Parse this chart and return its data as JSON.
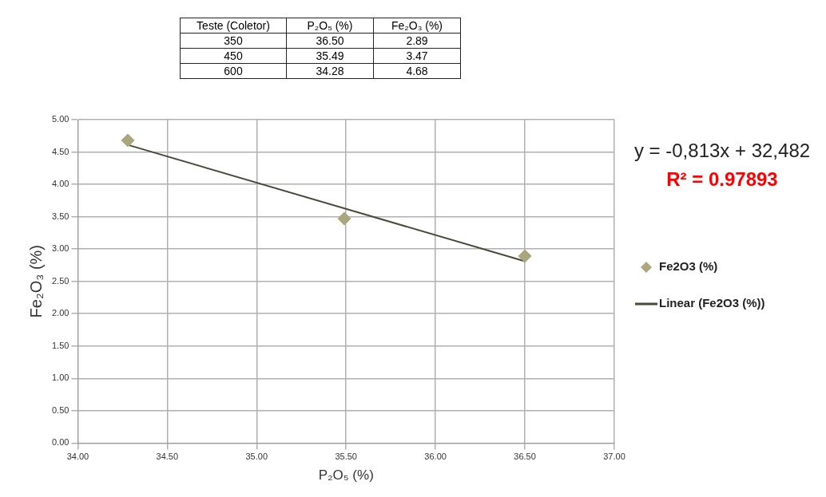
{
  "chart_data": [
    {
      "type": "other",
      "categories": [
        "Teste (Coletor)",
        "P₂O₅ (%)",
        "Fe₂O₃ (%)"
      ],
      "cell_labels": [
        [
          "350",
          "36.50",
          "2.89"
        ],
        [
          "450",
          "35.49",
          "3.47"
        ],
        [
          "600",
          "34.28",
          "4.68"
        ]
      ]
    },
    {
      "type": "scatter",
      "xlabel": "P₂O₅ (%)",
      "ylabel": "Fe₂O₃ (%)",
      "series": [
        {
          "name": "Fe2O3 (%)",
          "type": "scatter",
          "color": "#aaa67e",
          "marker": "diamond",
          "x": [
            36.5,
            35.49,
            34.28
          ],
          "values": [
            2.89,
            3.47,
            4.68
          ]
        },
        {
          "name": "Linear (Fe2O3 (%))",
          "type": "line",
          "color": "#4a4838",
          "marker": "none",
          "x": [
            34.28,
            36.5
          ],
          "values": [
            4.61,
            2.81
          ]
        }
      ],
      "xlim": [
        34,
        37
      ],
      "xticks": [
        {
          "value": 34,
          "label": "34.00"
        },
        {
          "value": 34.5,
          "label": "34.50"
        },
        {
          "value": 35,
          "label": "35.00"
        },
        {
          "value": 35.5,
          "label": "35.50"
        },
        {
          "value": 36,
          "label": "36.00"
        },
        {
          "value": 36.5,
          "label": "36.50"
        },
        {
          "value": 37,
          "label": "37.00"
        }
      ],
      "ylim": [
        0,
        5
      ],
      "yticks": [
        {
          "value": 0,
          "label": "0.00"
        },
        {
          "value": 0.5,
          "label": "0.50"
        },
        {
          "value": 1,
          "label": "1.00"
        },
        {
          "value": 1.5,
          "label": "1.50"
        },
        {
          "value": 2,
          "label": "2.00"
        },
        {
          "value": 2.5,
          "label": "2.50"
        },
        {
          "value": 3,
          "label": "3.00"
        },
        {
          "value": 3.5,
          "label": "3.50"
        },
        {
          "value": 4,
          "label": "4.00"
        },
        {
          "value": 4.5,
          "label": "4.50"
        },
        {
          "value": 5,
          "label": "5.00"
        }
      ],
      "grid": true,
      "legend": "right",
      "annotations": [
        "y = -0,813x + 32,482",
        "R² = 0.97893"
      ]
    }
  ]
}
